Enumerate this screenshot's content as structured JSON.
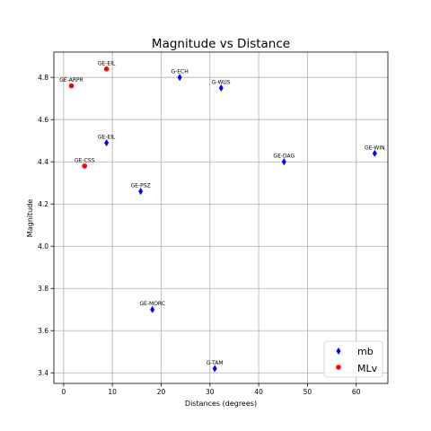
{
  "chart_data": {
    "type": "scatter",
    "title": "Magnitude vs Distance",
    "xlabel": "Distances (degrees)",
    "ylabel": "Magnitude",
    "xlim": [
      -2,
      66.5
    ],
    "ylim": [
      3.35,
      4.92
    ],
    "xticks": [
      0,
      10,
      20,
      30,
      40,
      50,
      60
    ],
    "yticks": [
      3.4,
      3.6,
      3.8,
      4.0,
      4.2,
      4.4,
      4.6,
      4.8
    ],
    "grid": true,
    "legend_position": "bottom-right",
    "series": [
      {
        "name": "mb",
        "color": "#0000ff",
        "marker": "thin-diamond",
        "points": [
          {
            "x": 8.8,
            "y": 4.49,
            "label": "GE-EIL"
          },
          {
            "x": 23.8,
            "y": 4.8,
            "label": "G-ECH"
          },
          {
            "x": 32.3,
            "y": 4.75,
            "label": "G-WUS"
          },
          {
            "x": 63.8,
            "y": 4.44,
            "label": "GE-WIN"
          },
          {
            "x": 45.2,
            "y": 4.4,
            "label": "GE-DAG"
          },
          {
            "x": 15.8,
            "y": 4.26,
            "label": "GE-PSZ"
          },
          {
            "x": 18.2,
            "y": 3.7,
            "label": "GE-MORC"
          },
          {
            "x": 31.0,
            "y": 3.42,
            "label": "G-TAM"
          }
        ]
      },
      {
        "name": "MLv",
        "color": "#ff0000",
        "marker": "circle",
        "points": [
          {
            "x": 8.8,
            "y": 4.84,
            "label": "GE-EIL"
          },
          {
            "x": 1.6,
            "y": 4.76,
            "label": "GE-ARPR"
          },
          {
            "x": 4.3,
            "y": 4.38,
            "label": "GE-CSS"
          }
        ]
      }
    ]
  }
}
